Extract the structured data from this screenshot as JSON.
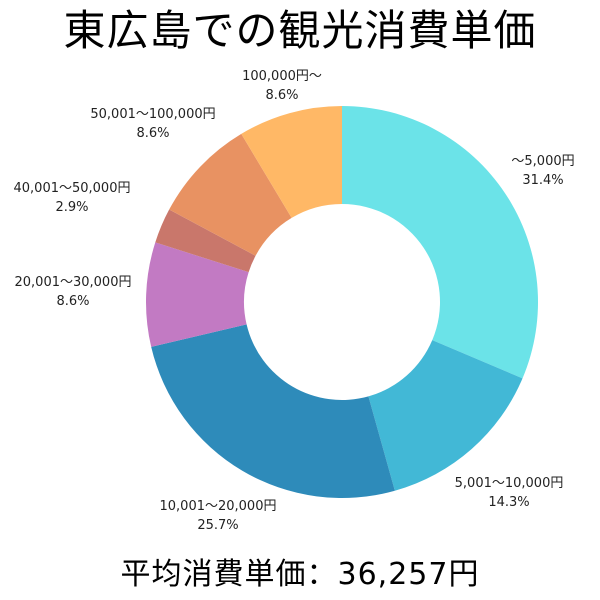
{
  "chart_data": {
    "type": "pie",
    "title": "東広島での観光消費単価",
    "categories": [
      "～5,000円",
      "5,001～10,000円",
      "10,001～20,000円",
      "20,001～30,000円",
      "40,001～50,000円",
      "50,001～100,000円",
      "100,000円～"
    ],
    "values": [
      31.4,
      14.3,
      25.7,
      8.6,
      2.9,
      8.6,
      8.6
    ],
    "value_labels": [
      "31.4%",
      "14.3%",
      "25.7%",
      "8.6%",
      "2.9%",
      "8.6%",
      "8.6%"
    ],
    "colors": [
      "#6be3e8",
      "#42b8d6",
      "#2e8bba",
      "#c27ac3",
      "#c9776b",
      "#e89262",
      "#ffb866"
    ],
    "donut": true,
    "start_angle": "top",
    "direction": "clockwise",
    "legend": "none"
  },
  "footer": {
    "text": "平均消費単価：36,257円"
  }
}
